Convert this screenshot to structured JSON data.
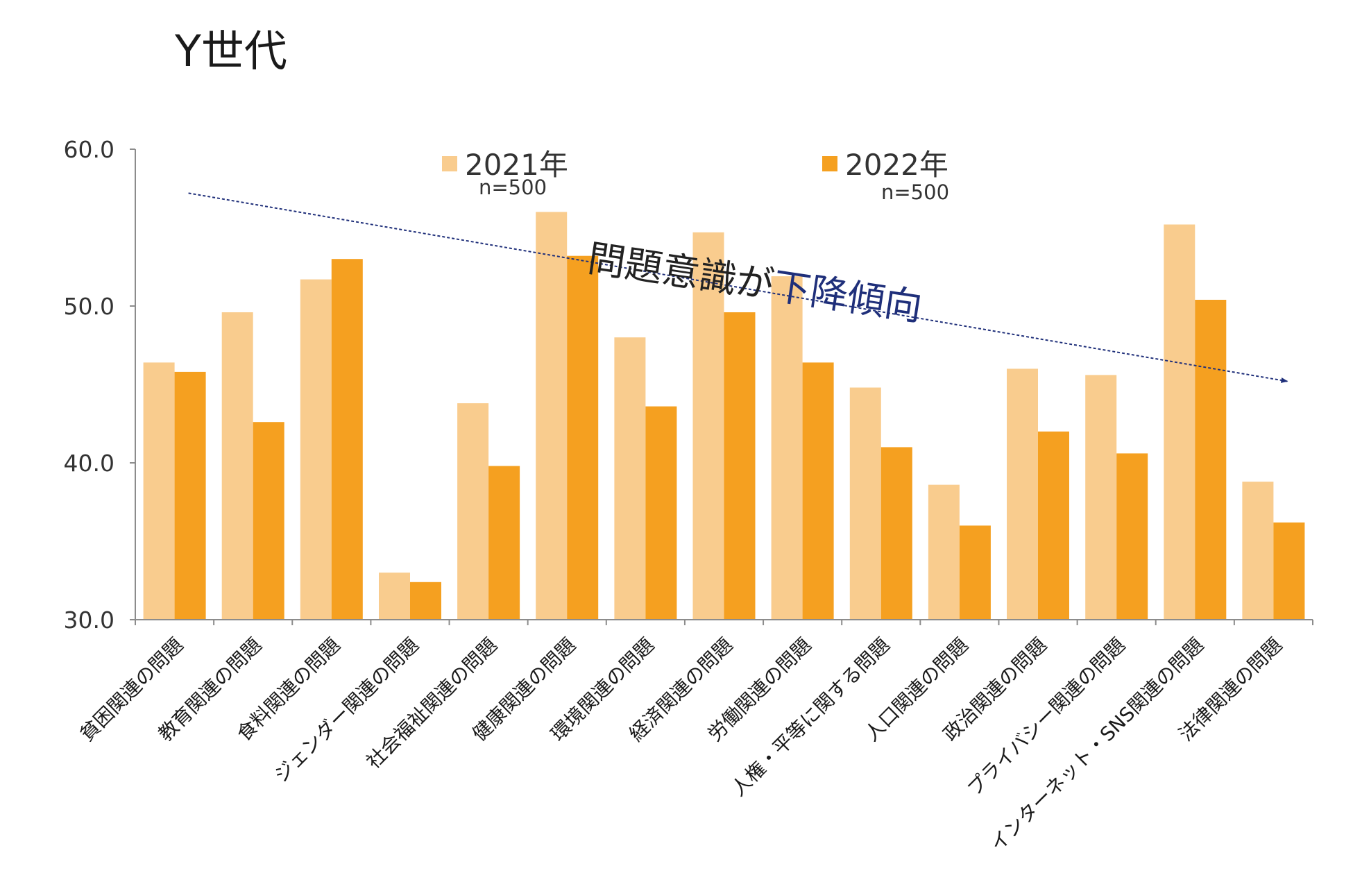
{
  "chart_data": {
    "type": "bar",
    "title": "Y世代",
    "xlabel": "",
    "ylabel": "",
    "ylim": [
      30,
      60
    ],
    "yticks": [
      "30.0",
      "40.0",
      "50.0",
      "60.0"
    ],
    "grid": false,
    "legend_position": "top",
    "categories": [
      "貧困関連の問題",
      "教育関連の問題",
      "食料関連の問題",
      "ジェンダー関連の問題",
      "社会福祉関連の問題",
      "健康関連の問題",
      "環境関連の問題",
      "経済関連の問題",
      "労働関連の問題",
      "人権・平等に関する問題",
      "人口関連の問題",
      "政治関連の問題",
      "プライバシー関連の問題",
      "インターネット・SNS関連の問題",
      "法律関連の問題"
    ],
    "series": [
      {
        "name": "2021年",
        "sample": "n=500",
        "color": "#F9CC8E",
        "values": [
          46.4,
          49.6,
          51.7,
          33.0,
          43.8,
          56.0,
          48.0,
          54.7,
          51.9,
          44.8,
          38.6,
          46.0,
          45.6,
          55.2,
          38.8
        ]
      },
      {
        "name": "2022年",
        "sample": "n=500",
        "color": "#F5A020",
        "values": [
          45.8,
          42.6,
          53.0,
          32.4,
          39.8,
          53.2,
          43.6,
          49.6,
          46.4,
          41.0,
          36.0,
          42.0,
          40.6,
          50.4,
          36.2
        ]
      }
    ],
    "annotation": {
      "text_dark": "問題意識が",
      "text_accent": "下降傾向",
      "dark_color": "#222222",
      "accent_color": "#1F2F7A",
      "arrow_color": "#1F2F7A",
      "arrow_start": {
        "category_index": 0,
        "value": 57.2
      },
      "arrow_end": {
        "category_index": 14,
        "value": 45.2
      }
    }
  }
}
